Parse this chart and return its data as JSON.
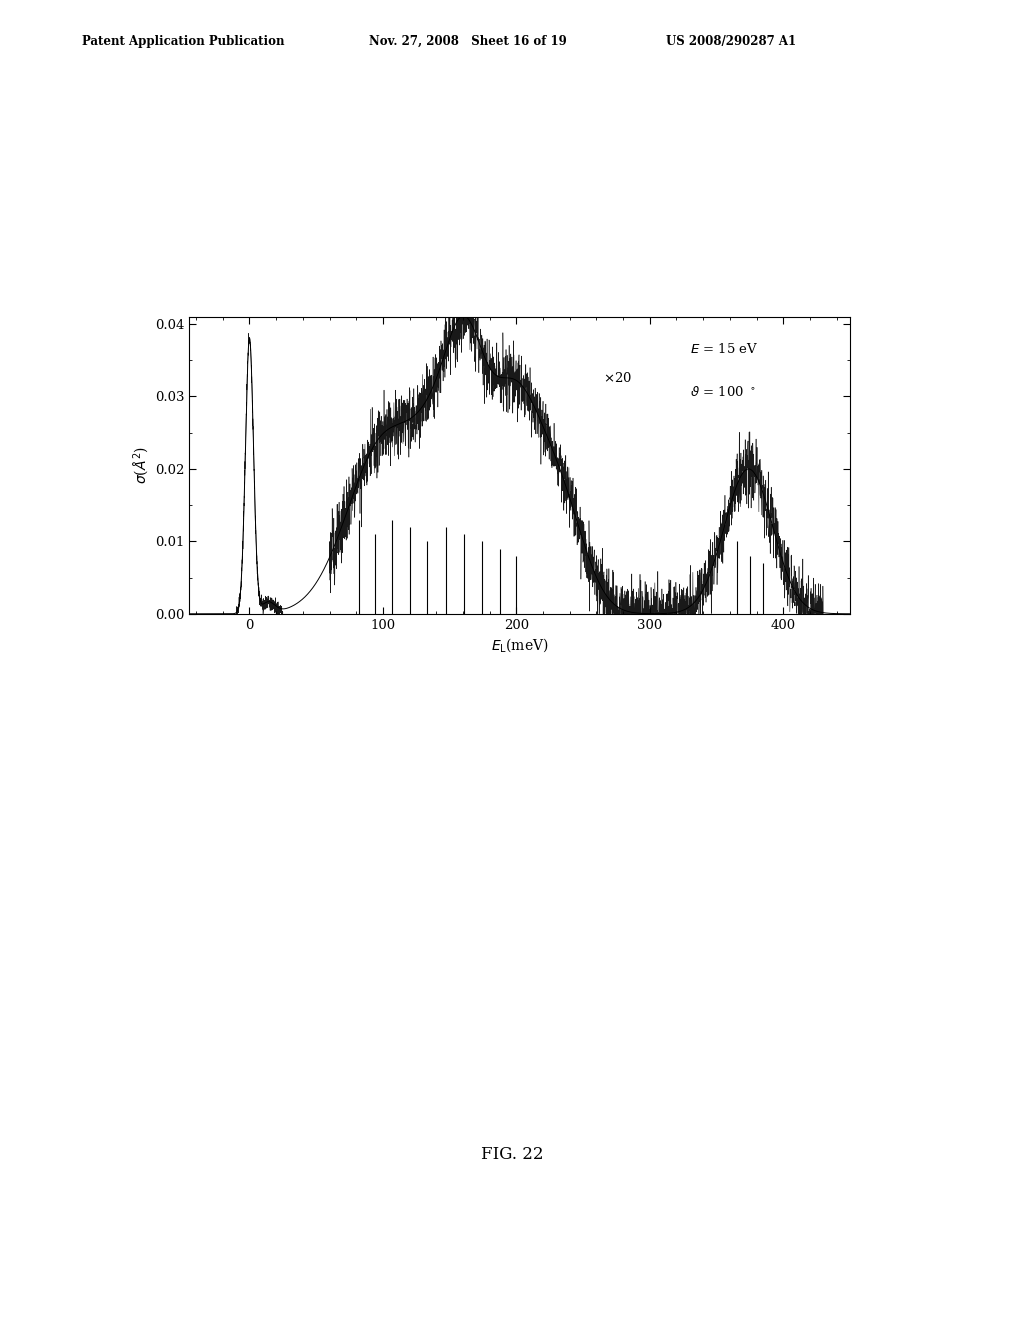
{
  "header_left": "Patent Application Publication",
  "header_mid": "Nov. 27, 2008   Sheet 16 of 19",
  "header_right": "US 2008/290287 A1",
  "figure_label": "FIG. 22",
  "xlabel": "$E_{\\rm L}$(meV)",
  "ylabel": "$\\sigma$($\\AA^2$)",
  "xlim": [
    -45,
    450
  ],
  "ylim": [
    0.0,
    0.041
  ],
  "xticks": [
    0,
    100,
    200,
    300,
    400
  ],
  "yticks": [
    0.0,
    0.01,
    0.02,
    0.03,
    0.04
  ],
  "background_color": "#ffffff"
}
